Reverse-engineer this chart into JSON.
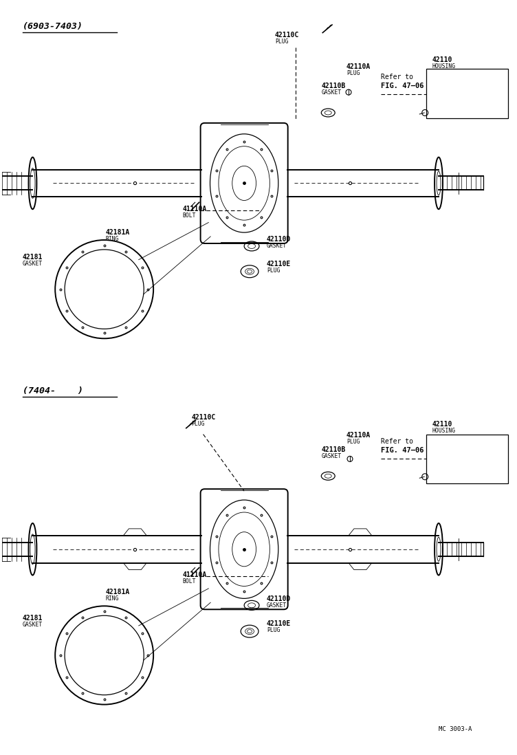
{
  "bg_color": "#ffffff",
  "line_color": "#000000",
  "fig_width": 7.52,
  "fig_height": 10.98,
  "diagram1_title": "(6903-7403)",
  "diagram2_title": "(7404-    )",
  "footer": "MC 3003-A"
}
